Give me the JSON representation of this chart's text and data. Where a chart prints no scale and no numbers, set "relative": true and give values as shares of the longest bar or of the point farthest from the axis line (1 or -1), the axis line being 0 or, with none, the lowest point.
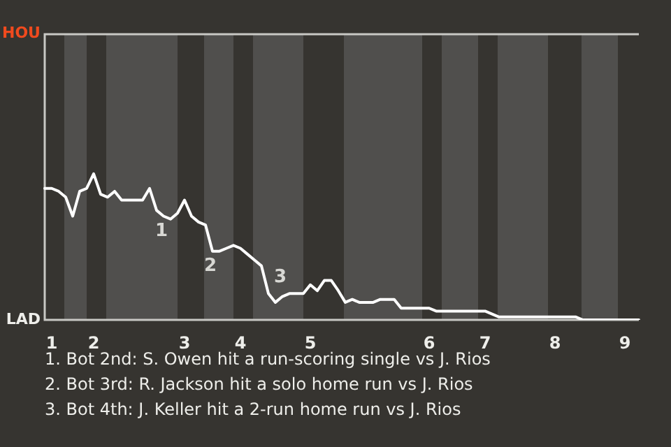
{
  "chart_data": {
    "type": "line",
    "relative": true,
    "categories": [
      null,
      "1",
      null,
      null,
      null,
      null,
      null,
      "2",
      null,
      null,
      null,
      null,
      null,
      null,
      null,
      null,
      null,
      null,
      null,
      null,
      "3",
      null,
      null,
      null,
      null,
      null,
      null,
      null,
      "4",
      null,
      null,
      null,
      null,
      null,
      null,
      null,
      null,
      null,
      "5",
      null,
      null,
      null,
      null,
      null,
      null,
      null,
      null,
      null,
      null,
      null,
      null,
      null,
      null,
      null,
      null,
      "6",
      null,
      null,
      null,
      null,
      null,
      null,
      null,
      "7",
      null,
      null,
      null,
      null,
      null,
      null,
      null,
      null,
      null,
      "8",
      null,
      null,
      null,
      null,
      null,
      null,
      null,
      null,
      null,
      "9",
      null,
      null
    ],
    "series": [
      {
        "color": "#ffffff",
        "values": [
          0.9,
          0.9,
          0.88,
          0.84,
          0.71,
          0.88,
          0.9,
          1,
          0.86,
          0.84,
          0.88,
          0.82,
          0.82,
          0.82,
          0.82,
          0.9,
          0.75,
          0.71,
          0.69,
          0.73,
          0.82,
          0.71,
          0.67,
          0.65,
          0.47,
          0.47,
          0.49,
          0.51,
          0.49,
          0.45,
          0.41,
          0.37,
          0.18,
          0.12,
          0.16,
          0.18,
          0.18,
          0.18,
          0.24,
          0.2,
          0.27,
          0.27,
          0.2,
          0.12,
          0.14,
          0.12,
          0.12,
          0.12,
          0.14,
          0.14,
          0.14,
          0.08,
          0.08,
          0.08,
          0.08,
          0.08,
          0.06,
          0.06,
          0.06,
          0.06,
          0.06,
          0.06,
          0.06,
          0.06,
          0.04,
          0.02,
          0.02,
          0.02,
          0.02,
          0.02,
          0.02,
          0.02,
          0.02,
          0.02,
          0.02,
          0.02,
          0.02,
          0,
          0,
          0,
          0,
          0,
          0,
          0,
          0,
          0
        ]
      }
    ],
    "marker": "none",
    "line_style": "solid",
    "legend": false,
    "annotations": [
      "HOU",
      "LAD",
      "1",
      "2",
      "3",
      "1. Bot 2nd: S. Owen hit a run-scoring single vs J. Rios",
      "2. Bot 3rd: R. Jackson hit a solo home run vs J. Rios",
      "3. Bot 4th: J. Keller hit a 2-run home run vs J. Rios"
    ]
  }
}
